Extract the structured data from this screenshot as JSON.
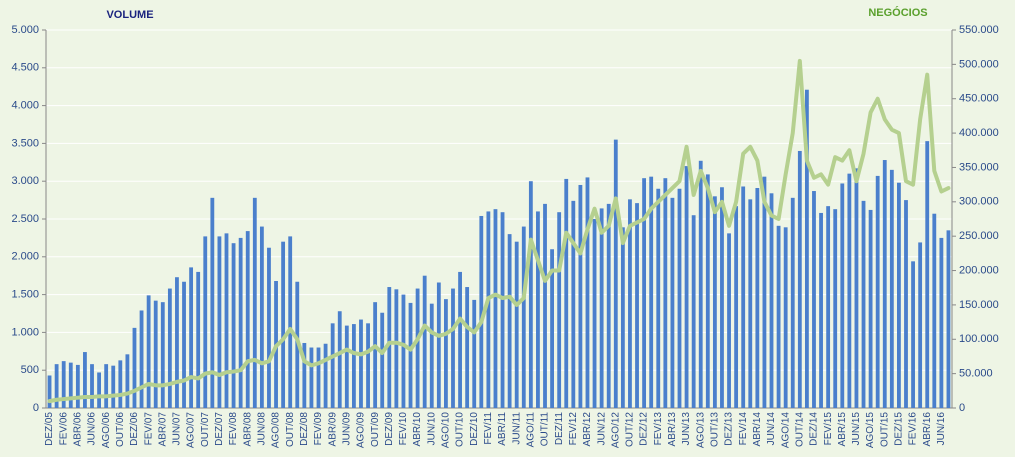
{
  "chart_data": {
    "type": "bar_line",
    "categories": [
      "DEZ/05",
      null,
      "FEV/06",
      null,
      "ABR/06",
      null,
      "JUN/06",
      null,
      "AGO/06",
      null,
      "OUT/06",
      null,
      "DEZ/06",
      null,
      "FEV/07",
      null,
      "ABR/07",
      null,
      "JUN/07",
      null,
      "AGO/07",
      null,
      "OUT/07",
      null,
      "DEZ/07",
      null,
      "FEV/08",
      null,
      "ABR/08",
      null,
      "JUN/08",
      null,
      "AGO/08",
      null,
      "OUT/08",
      null,
      "DEZ/08",
      null,
      "FEV/09",
      null,
      "ABR/09",
      null,
      "JUN/09",
      null,
      "AGO/09",
      null,
      "OUT/09",
      null,
      "DEZ/09",
      null,
      "FEV/10",
      null,
      "ABR/10",
      null,
      "JUN/10",
      null,
      "AGO/10",
      null,
      "OUT/10",
      null,
      "DEZ/10",
      null,
      "FEV/11",
      null,
      "ABR/11",
      null,
      "JUN/11",
      null,
      "AGO/11",
      null,
      "OUT/11",
      null,
      "DEZ/11",
      null,
      "FEV/12",
      null,
      "ABR/12",
      null,
      "JUN/12",
      null,
      "AGO/12",
      null,
      "OUT/12",
      null,
      "DEZ/12",
      null,
      "FEV/13",
      null,
      "ABR/13",
      null,
      "JUN/13",
      null,
      "AGO/13",
      null,
      "OUT/13",
      null,
      "DEZ/13",
      null,
      "FEV/14",
      null,
      "ABR/14",
      null,
      "JUN/14",
      null,
      "AGO/14",
      null,
      "OUT/14",
      null,
      "DEZ/14",
      null,
      "FEV/15",
      null,
      "ABR/15",
      null,
      "JUN/15",
      null,
      "AGO/15",
      null,
      "OUT/15",
      null,
      "DEZ/15",
      null,
      "FEV/16",
      null,
      "ABR/16",
      null,
      "JUN/16",
      null
    ],
    "series": [
      {
        "name": "VOLUME",
        "color": "#4a7fcc",
        "axis": "y",
        "values": [
          430,
          580,
          620,
          600,
          570,
          740,
          580,
          470,
          580,
          560,
          630,
          710,
          1060,
          1290,
          1490,
          1420,
          1400,
          1580,
          1730,
          1670,
          1860,
          1800,
          2270,
          2780,
          2270,
          2310,
          2180,
          2250,
          2340,
          2780,
          2400,
          2120,
          1680,
          2200,
          2270,
          1670,
          860,
          800,
          800,
          850,
          1120,
          1280,
          1090,
          1110,
          1170,
          1120,
          1400,
          1260,
          1600,
          1570,
          1500,
          1390,
          1580,
          1750,
          1380,
          1660,
          1440,
          1580,
          1800,
          1600,
          1430,
          2540,
          2600,
          2630,
          2590,
          2300,
          2200,
          2400,
          3000,
          2600,
          2700,
          2100,
          2590,
          3030,
          2740,
          2950,
          3050,
          2500,
          2640,
          2700,
          3550,
          2390,
          2760,
          2710,
          3040,
          3060,
          2900,
          3040,
          2780,
          2900,
          3200,
          2550,
          3270,
          3090,
          2800,
          2920,
          2310,
          2670,
          2930,
          2760,
          2910,
          3060,
          2840,
          2410,
          2390,
          2780,
          3400,
          4210,
          2870,
          2580,
          2670,
          2630,
          2970,
          3100,
          3170,
          2740,
          2620,
          3070,
          3280,
          3150,
          2980,
          2750,
          1940,
          2190,
          3530,
          2570,
          2250,
          2350
        ]
      },
      {
        "name": "NEGÓCIOS",
        "color": "#b5d08f",
        "axis": "y2",
        "values": [
          10000,
          12000,
          13000,
          14000,
          15000,
          16000,
          16000,
          17000,
          17000,
          18000,
          19000,
          21000,
          25000,
          30000,
          35000,
          33000,
          33000,
          35000,
          38000,
          40000,
          45000,
          43000,
          50000,
          52000,
          48000,
          52000,
          53000,
          55000,
          68000,
          70000,
          65000,
          68000,
          90000,
          100000,
          115000,
          100000,
          68000,
          62000,
          65000,
          70000,
          75000,
          80000,
          85000,
          80000,
          78000,
          82000,
          90000,
          80000,
          95000,
          95000,
          92000,
          85000,
          100000,
          120000,
          110000,
          105000,
          108000,
          115000,
          130000,
          118000,
          110000,
          125000,
          160000,
          165000,
          160000,
          162000,
          150000,
          160000,
          245000,
          215000,
          185000,
          200000,
          200000,
          255000,
          240000,
          225000,
          260000,
          290000,
          255000,
          265000,
          305000,
          240000,
          265000,
          270000,
          275000,
          290000,
          300000,
          310000,
          320000,
          330000,
          380000,
          310000,
          345000,
          320000,
          285000,
          300000,
          265000,
          300000,
          370000,
          380000,
          360000,
          300000,
          280000,
          275000,
          340000,
          400000,
          505000,
          360000,
          335000,
          340000,
          325000,
          365000,
          360000,
          375000,
          330000,
          370000,
          430000,
          450000,
          420000,
          405000,
          400000,
          330000,
          325000,
          420000,
          485000,
          345000,
          315000,
          320000
        ]
      }
    ],
    "ylim": [
      0,
      5000
    ],
    "yticks": [
      0,
      {
        "value": 500,
        "label": "500"
      },
      {
        "value": 1000,
        "label": "1.000"
      },
      {
        "value": 1500,
        "label": "1.500"
      },
      {
        "value": 2000,
        "label": "2.000"
      },
      {
        "value": 2500,
        "label": "2.500"
      },
      {
        "value": 3000,
        "label": "3.000"
      },
      {
        "value": 3500,
        "label": "3.500"
      },
      {
        "value": 4000,
        "label": "4.000"
      },
      {
        "value": 4500,
        "label": "4.500"
      },
      {
        "value": 5000,
        "label": "5.000"
      }
    ],
    "y2lim": [
      0,
      550000
    ],
    "y2ticks": [
      0,
      {
        "value": 50000,
        "label": "50.000"
      },
      {
        "value": 100000,
        "label": "100.000"
      },
      {
        "value": 150000,
        "label": "150.000"
      },
      {
        "value": 200000,
        "label": "200.000"
      },
      {
        "value": 250000,
        "label": "250.000"
      },
      {
        "value": 300000,
        "label": "300.000"
      },
      {
        "value": 350000,
        "label": "350.000"
      },
      {
        "value": 400000,
        "label": "400.000"
      },
      {
        "value": 450000,
        "label": "450.000"
      },
      {
        "value": 500000,
        "label": "500.000"
      },
      {
        "value": 550000,
        "label": "550.000"
      }
    ],
    "grid": true
  }
}
